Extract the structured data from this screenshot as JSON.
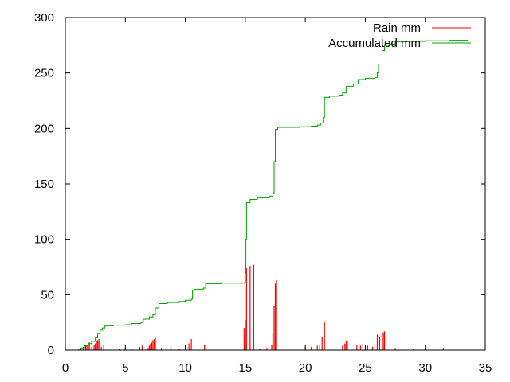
{
  "chart_data": {
    "type": "line",
    "title": "",
    "xlabel": "",
    "ylabel": "",
    "xlim": [
      0,
      35
    ],
    "ylim": [
      0,
      300
    ],
    "xticks": [
      0,
      5,
      10,
      15,
      20,
      25,
      30,
      35
    ],
    "yticks": [
      0,
      50,
      100,
      150,
      200,
      250,
      300
    ],
    "grid": false,
    "legend_position": "top-right",
    "series": [
      {
        "name": "Rain mm",
        "style": "impulses",
        "color": "#ff0000",
        "points": [
          [
            1.1,
            1
          ],
          [
            1.3,
            2
          ],
          [
            1.5,
            3
          ],
          [
            1.7,
            5
          ],
          [
            1.8,
            4
          ],
          [
            1.9,
            6
          ],
          [
            2.0,
            7
          ],
          [
            2.2,
            3
          ],
          [
            2.4,
            5
          ],
          [
            2.5,
            6
          ],
          [
            2.6,
            8
          ],
          [
            2.7,
            9
          ],
          [
            2.8,
            10
          ],
          [
            3.0,
            3
          ],
          [
            3.2,
            5
          ],
          [
            4.5,
            1
          ],
          [
            5.0,
            2
          ],
          [
            5.5,
            1
          ],
          [
            6.2,
            3
          ],
          [
            6.4,
            4
          ],
          [
            6.9,
            2
          ],
          [
            7.0,
            4
          ],
          [
            7.1,
            6
          ],
          [
            7.2,
            7
          ],
          [
            7.3,
            9
          ],
          [
            7.4,
            10
          ],
          [
            7.5,
            11
          ],
          [
            8.0,
            2
          ],
          [
            8.8,
            4
          ],
          [
            9.5,
            1
          ],
          [
            10.3,
            6
          ],
          [
            10.5,
            10
          ],
          [
            11.6,
            5
          ],
          [
            14.9,
            20
          ],
          [
            15.0,
            27
          ],
          [
            15.1,
            74
          ],
          [
            15.4,
            76
          ],
          [
            15.7,
            77
          ],
          [
            16.2,
            1
          ],
          [
            16.8,
            2
          ],
          [
            17.2,
            5
          ],
          [
            17.3,
            15
          ],
          [
            17.4,
            40
          ],
          [
            17.5,
            60
          ],
          [
            17.6,
            63
          ],
          [
            20.0,
            3
          ],
          [
            20.5,
            3
          ],
          [
            21.0,
            4
          ],
          [
            21.2,
            5
          ],
          [
            21.4,
            12
          ],
          [
            21.6,
            25
          ],
          [
            23.1,
            4
          ],
          [
            23.3,
            6
          ],
          [
            23.4,
            8
          ],
          [
            23.5,
            9
          ],
          [
            24.3,
            5
          ],
          [
            24.6,
            4
          ],
          [
            24.8,
            6
          ],
          [
            25.2,
            4
          ],
          [
            25.6,
            3
          ],
          [
            25.8,
            5
          ],
          [
            26.0,
            14
          ],
          [
            26.2,
            12
          ],
          [
            26.4,
            15
          ],
          [
            26.5,
            16
          ],
          [
            26.6,
            17
          ],
          [
            27.5,
            2
          ],
          [
            29.0,
            1
          ],
          [
            30.0,
            1
          ],
          [
            31.5,
            2
          ]
        ]
      },
      {
        "name": "Accumulated mm",
        "style": "line",
        "color": "#00a000",
        "points": [
          [
            1.0,
            0
          ],
          [
            1.3,
            2
          ],
          [
            1.6,
            4
          ],
          [
            1.9,
            6
          ],
          [
            2.2,
            8
          ],
          [
            2.5,
            11
          ],
          [
            2.7,
            15
          ],
          [
            2.9,
            18
          ],
          [
            3.1,
            20
          ],
          [
            3.3,
            22
          ],
          [
            4.0,
            22.5
          ],
          [
            5.0,
            23
          ],
          [
            5.5,
            24
          ],
          [
            6.3,
            25
          ],
          [
            6.5,
            28
          ],
          [
            7.0,
            30
          ],
          [
            7.3,
            32
          ],
          [
            7.5,
            38
          ],
          [
            7.8,
            42
          ],
          [
            8.5,
            43
          ],
          [
            9.5,
            44
          ],
          [
            10.0,
            45
          ],
          [
            10.5,
            46
          ],
          [
            10.6,
            54
          ],
          [
            10.8,
            55
          ],
          [
            11.5,
            56
          ],
          [
            11.7,
            60
          ],
          [
            13.0,
            60.5
          ],
          [
            14.9,
            61
          ],
          [
            15.0,
            70
          ],
          [
            15.05,
            100
          ],
          [
            15.1,
            133
          ],
          [
            15.4,
            136
          ],
          [
            16.0,
            137.5
          ],
          [
            17.0,
            139
          ],
          [
            17.3,
            141
          ],
          [
            17.4,
            170
          ],
          [
            17.5,
            199
          ],
          [
            17.7,
            201
          ],
          [
            18.5,
            201
          ],
          [
            19.5,
            201.5
          ],
          [
            20.5,
            202
          ],
          [
            21.0,
            203
          ],
          [
            21.3,
            205
          ],
          [
            21.5,
            210
          ],
          [
            21.6,
            228
          ],
          [
            22.0,
            229
          ],
          [
            22.8,
            230
          ],
          [
            23.1,
            232
          ],
          [
            23.4,
            238
          ],
          [
            24.0,
            240
          ],
          [
            24.4,
            244
          ],
          [
            25.0,
            245
          ],
          [
            25.8,
            246
          ],
          [
            26.0,
            250
          ],
          [
            26.1,
            258
          ],
          [
            26.4,
            270
          ],
          [
            26.6,
            275
          ],
          [
            27.0,
            276
          ],
          [
            27.5,
            278
          ],
          [
            28.5,
            278.5
          ],
          [
            30.0,
            279
          ],
          [
            32.0,
            279.5
          ],
          [
            33.5,
            280
          ]
        ]
      }
    ]
  }
}
